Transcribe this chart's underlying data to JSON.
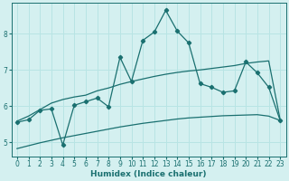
{
  "xlabel": "Humidex (Indice chaleur)",
  "bg_color": "#d4f0f0",
  "grid_color": "#b8e4e4",
  "line_color": "#1a7070",
  "xlim": [
    -0.5,
    23.5
  ],
  "ylim": [
    4.6,
    8.85
  ],
  "xticks": [
    0,
    1,
    2,
    3,
    4,
    5,
    6,
    7,
    8,
    9,
    10,
    11,
    12,
    13,
    14,
    15,
    16,
    17,
    18,
    19,
    20,
    21,
    22,
    23
  ],
  "yticks": [
    5,
    6,
    7,
    8
  ],
  "series_jagged_x": [
    0,
    1,
    2,
    3,
    4,
    5,
    6,
    7,
    8,
    9,
    10,
    11,
    12,
    13,
    14,
    15,
    16,
    17,
    18,
    19,
    20,
    21,
    22,
    23
  ],
  "series_jagged_y": [
    5.55,
    5.62,
    5.88,
    5.92,
    4.92,
    6.02,
    6.12,
    6.22,
    5.98,
    7.35,
    6.68,
    7.82,
    8.05,
    8.65,
    8.08,
    7.75,
    6.62,
    6.52,
    6.38,
    6.42,
    7.22,
    6.92,
    6.52,
    5.6
  ],
  "series_upper_x": [
    0,
    1,
    2,
    3,
    4,
    5,
    6,
    7,
    8,
    9,
    10,
    11,
    12,
    13,
    14,
    15,
    16,
    17,
    18,
    19,
    20,
    21,
    22,
    23
  ],
  "series_upper_y": [
    5.58,
    5.72,
    5.9,
    6.08,
    6.18,
    6.25,
    6.3,
    6.42,
    6.5,
    6.6,
    6.68,
    6.75,
    6.82,
    6.88,
    6.93,
    6.97,
    7.0,
    7.04,
    7.08,
    7.12,
    7.18,
    7.22,
    7.25,
    5.62
  ],
  "series_lower_x": [
    0,
    1,
    2,
    3,
    4,
    5,
    6,
    7,
    8,
    9,
    10,
    11,
    12,
    13,
    14,
    15,
    16,
    17,
    18,
    19,
    20,
    21,
    22,
    23
  ],
  "series_lower_y": [
    4.82,
    4.9,
    4.98,
    5.05,
    5.12,
    5.18,
    5.24,
    5.3,
    5.36,
    5.42,
    5.47,
    5.52,
    5.56,
    5.6,
    5.64,
    5.67,
    5.69,
    5.71,
    5.73,
    5.74,
    5.75,
    5.76,
    5.72,
    5.6
  ]
}
